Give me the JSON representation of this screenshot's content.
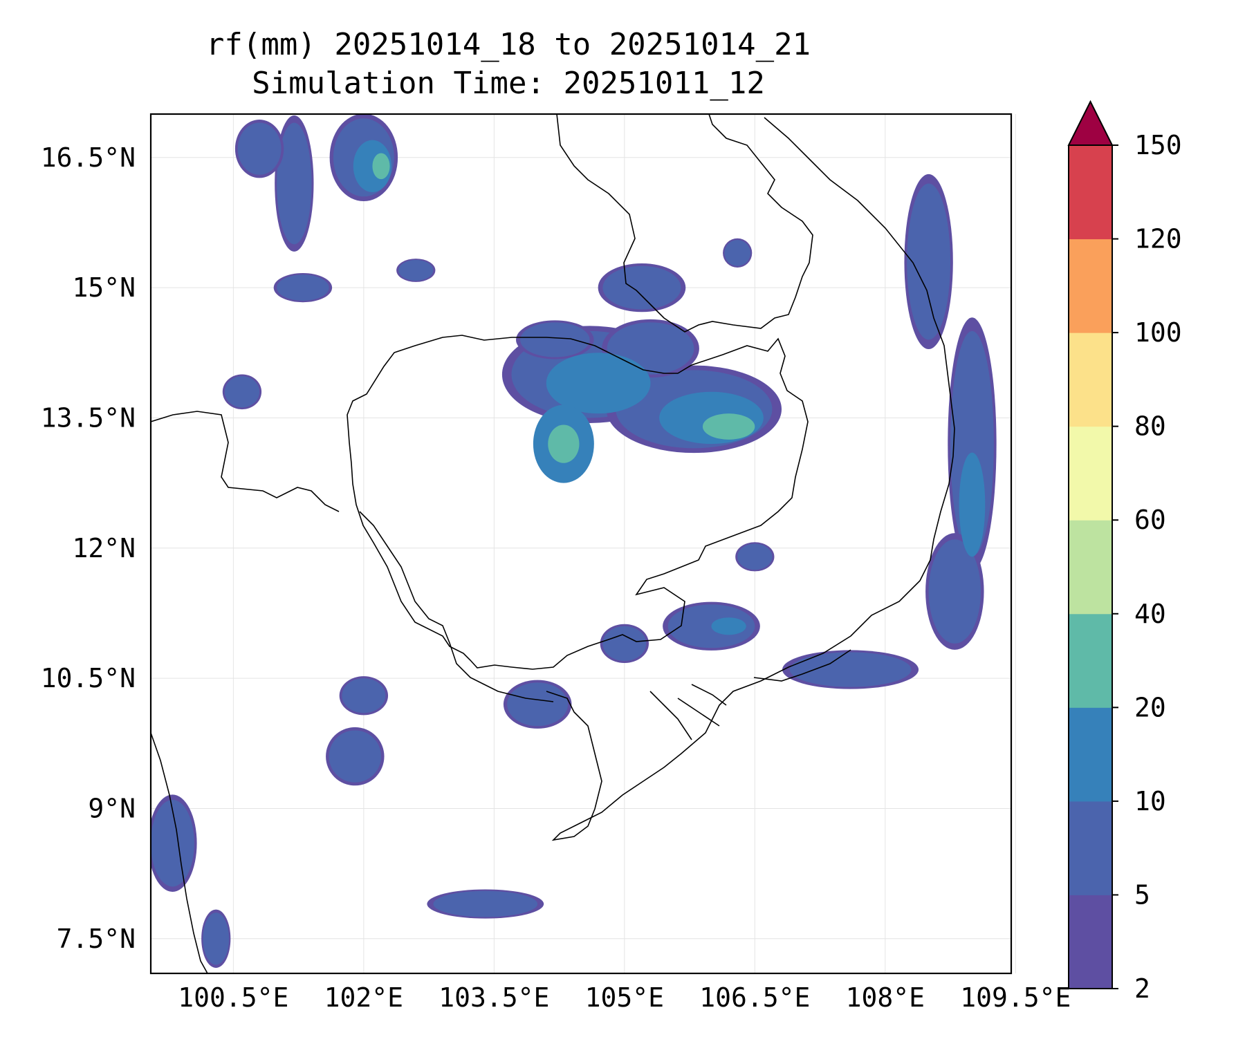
{
  "title": {
    "line1": "rf(mm) 20251014_18 to 20251014_21",
    "line2": "Simulation Time: 20251011_12"
  },
  "map": {
    "x_ticks": [
      "100.5°E",
      "102°E",
      "103.5°E",
      "105°E",
      "106.5°E",
      "108°E",
      "109.5°E"
    ],
    "x_values": [
      100.5,
      102,
      103.5,
      105,
      106.5,
      108,
      109.5
    ],
    "y_ticks": [
      "16.5°N",
      "15°N",
      "13.5°N",
      "12°N",
      "10.5°N",
      "9°N",
      "7.5°N"
    ],
    "y_values": [
      16.5,
      15,
      13.5,
      12,
      10.5,
      9,
      7.5
    ],
    "lon_range": [
      99.55,
      109.45
    ],
    "lat_range": [
      17.0,
      7.1
    ],
    "rain_cells": [
      {
        "lon": 104.6,
        "lat": 14.0,
        "rx": 0.9,
        "ry": 0.5,
        "level": 1
      },
      {
        "lon": 104.7,
        "lat": 13.9,
        "rx": 0.6,
        "ry": 0.35,
        "level": 2
      },
      {
        "lon": 104.3,
        "lat": 13.2,
        "rx": 0.35,
        "ry": 0.45,
        "level": 2
      },
      {
        "lon": 104.3,
        "lat": 13.2,
        "rx": 0.18,
        "ry": 0.22,
        "level": 3
      },
      {
        "lon": 105.8,
        "lat": 13.6,
        "rx": 0.9,
        "ry": 0.45,
        "level": 1
      },
      {
        "lon": 106.0,
        "lat": 13.5,
        "rx": 0.6,
        "ry": 0.3,
        "level": 2
      },
      {
        "lon": 106.2,
        "lat": 13.4,
        "rx": 0.3,
        "ry": 0.15,
        "level": 3
      },
      {
        "lon": 105.3,
        "lat": 14.3,
        "rx": 0.5,
        "ry": 0.3,
        "level": 1
      },
      {
        "lon": 104.2,
        "lat": 14.4,
        "rx": 0.4,
        "ry": 0.2,
        "level": 1
      },
      {
        "lon": 102.0,
        "lat": 16.5,
        "rx": 0.35,
        "ry": 0.45,
        "level": 1
      },
      {
        "lon": 102.1,
        "lat": 16.4,
        "rx": 0.22,
        "ry": 0.3,
        "level": 2
      },
      {
        "lon": 102.2,
        "lat": 16.4,
        "rx": 0.1,
        "ry": 0.15,
        "level": 3
      },
      {
        "lon": 101.2,
        "lat": 16.2,
        "rx": 0.2,
        "ry": 0.7,
        "level": 1
      },
      {
        "lon": 100.8,
        "lat": 16.6,
        "rx": 0.25,
        "ry": 0.3,
        "level": 1
      },
      {
        "lon": 100.6,
        "lat": 13.8,
        "rx": 0.2,
        "ry": 0.18,
        "level": 1
      },
      {
        "lon": 108.5,
        "lat": 15.3,
        "rx": 0.25,
        "ry": 0.9,
        "level": 1
      },
      {
        "lon": 109.0,
        "lat": 13.2,
        "rx": 0.25,
        "ry": 1.3,
        "level": 1
      },
      {
        "lon": 109.0,
        "lat": 12.5,
        "rx": 0.15,
        "ry": 0.6,
        "level": 2
      },
      {
        "lon": 108.8,
        "lat": 11.5,
        "rx": 0.3,
        "ry": 0.6,
        "level": 1
      },
      {
        "lon": 107.6,
        "lat": 10.6,
        "rx": 0.7,
        "ry": 0.2,
        "level": 1
      },
      {
        "lon": 106.0,
        "lat": 11.1,
        "rx": 0.5,
        "ry": 0.25,
        "level": 1
      },
      {
        "lon": 106.2,
        "lat": 11.1,
        "rx": 0.2,
        "ry": 0.1,
        "level": 2
      },
      {
        "lon": 105.0,
        "lat": 10.9,
        "rx": 0.25,
        "ry": 0.2,
        "level": 1
      },
      {
        "lon": 104.0,
        "lat": 10.2,
        "rx": 0.35,
        "ry": 0.25,
        "level": 1
      },
      {
        "lon": 101.9,
        "lat": 9.6,
        "rx": 0.3,
        "ry": 0.3,
        "level": 1
      },
      {
        "lon": 102.0,
        "lat": 10.3,
        "rx": 0.25,
        "ry": 0.2,
        "level": 1
      },
      {
        "lon": 99.8,
        "lat": 8.6,
        "rx": 0.25,
        "ry": 0.5,
        "level": 1
      },
      {
        "lon": 103.4,
        "lat": 7.9,
        "rx": 0.6,
        "ry": 0.15,
        "level": 1
      },
      {
        "lon": 100.3,
        "lat": 7.5,
        "rx": 0.15,
        "ry": 0.3,
        "level": 1
      },
      {
        "lon": 102.6,
        "lat": 15.2,
        "rx": 0.2,
        "ry": 0.12,
        "level": 1
      },
      {
        "lon": 106.3,
        "lat": 15.4,
        "rx": 0.15,
        "ry": 0.15,
        "level": 1
      },
      {
        "lon": 105.2,
        "lat": 15.0,
        "rx": 0.45,
        "ry": 0.25,
        "level": 1
      },
      {
        "lon": 101.3,
        "lat": 15.0,
        "rx": 0.3,
        "ry": 0.15,
        "level": 1
      },
      {
        "lon": 106.5,
        "lat": 11.9,
        "rx": 0.2,
        "ry": 0.15,
        "level": 1
      }
    ]
  },
  "colorbar": {
    "levels": [
      2,
      5,
      10,
      20,
      40,
      60,
      80,
      100,
      120,
      150
    ],
    "labels": [
      "2",
      "5",
      "10",
      "20",
      "40",
      "60",
      "80",
      "100",
      "120",
      "150"
    ],
    "colors": [
      "#5e4fa2",
      "#4b64ad",
      "#3681ba",
      "#5fbaa8",
      "#bde3a0",
      "#f2f9aa",
      "#fce18a",
      "#faa05b",
      "#d7414e"
    ],
    "extend_color": "#9e0142"
  }
}
